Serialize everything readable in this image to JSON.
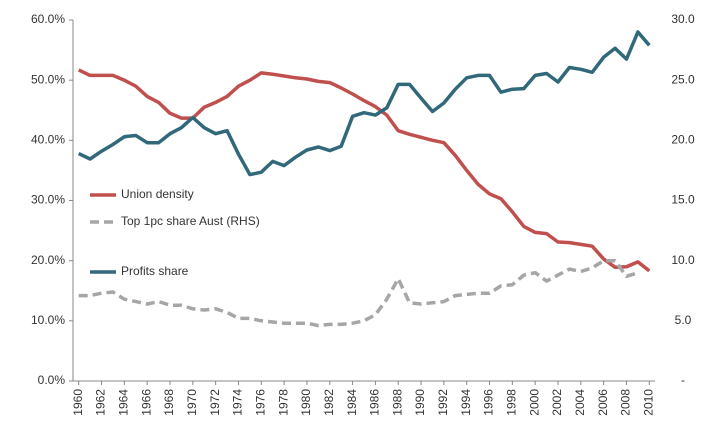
{
  "chart_data": {
    "type": "line",
    "x": [
      1960,
      1961,
      1962,
      1963,
      1964,
      1965,
      1966,
      1967,
      1968,
      1969,
      1970,
      1971,
      1972,
      1973,
      1974,
      1975,
      1976,
      1977,
      1978,
      1979,
      1980,
      1981,
      1982,
      1983,
      1984,
      1985,
      1986,
      1987,
      1988,
      1989,
      1990,
      1991,
      1992,
      1993,
      1994,
      1995,
      1996,
      1997,
      1998,
      1999,
      2000,
      2001,
      2002,
      2003,
      2004,
      2005,
      2006,
      2007,
      2008,
      2009,
      2010
    ],
    "xlim": [
      1959.5,
      2010.5
    ],
    "xticks": [
      1960,
      1962,
      1964,
      1966,
      1968,
      1970,
      1972,
      1974,
      1976,
      1978,
      1980,
      1982,
      1984,
      1986,
      1988,
      1990,
      1992,
      1994,
      1996,
      1998,
      2000,
      2002,
      2004,
      2006,
      2008,
      2010
    ],
    "ylim": [
      0,
      60
    ],
    "yticks": [
      {
        "value": 0,
        "label": "0.0%"
      },
      {
        "value": 10,
        "label": "10.0%"
      },
      {
        "value": 20,
        "label": "20.0%"
      },
      {
        "value": 30,
        "label": "30.0%"
      },
      {
        "value": 40,
        "label": "40.0%"
      },
      {
        "value": 50,
        "label": "50.0%"
      },
      {
        "value": 60,
        "label": "60.0%"
      }
    ],
    "y2lim": [
      0,
      30
    ],
    "y2ticks": [
      {
        "value": 0,
        "label": "-"
      },
      {
        "value": 5,
        "label": "5.0"
      },
      {
        "value": 10,
        "label": "10.0"
      },
      {
        "value": 15,
        "label": "15.0"
      },
      {
        "value": 20,
        "label": "20.0"
      },
      {
        "value": 25,
        "label": "25.0"
      },
      {
        "value": 30,
        "label": "30.0"
      }
    ],
    "series": [
      {
        "name": "Union density",
        "color": "#c0504d",
        "values": [
          51.7,
          50.8,
          50.8,
          50.8,
          50.0,
          49.0,
          47.3,
          46.3,
          44.5,
          43.7,
          43.7,
          45.5,
          46.3,
          47.3,
          49.0,
          50.0,
          51.2,
          51.0,
          50.7,
          50.4,
          50.2,
          49.8,
          49.6,
          48.7,
          47.7,
          46.6,
          45.6,
          44.2,
          41.6,
          41.0,
          40.5,
          40.0,
          39.6,
          37.5,
          35.0,
          32.7,
          31.1,
          30.3,
          28.1,
          25.7,
          24.7,
          24.5,
          23.1,
          23.0,
          22.7,
          22.4,
          20.3,
          18.9,
          19.0,
          19.8,
          18.3
        ]
      },
      {
        "name": "Top 1pc share Aust (RHS)",
        "color": "#a6a6a6",
        "dashed": true,
        "axis": "y2",
        "values": [
          7.1,
          7.1,
          7.3,
          7.4,
          6.8,
          6.6,
          6.4,
          6.6,
          6.3,
          6.3,
          6.0,
          5.9,
          6.0,
          5.7,
          5.2,
          5.2,
          5.0,
          4.9,
          4.8,
          4.8,
          4.8,
          4.6,
          4.7,
          4.7,
          4.8,
          5.0,
          5.5,
          6.8,
          8.5,
          6.5,
          6.4,
          6.5,
          6.6,
          7.1,
          7.2,
          7.3,
          7.3,
          7.9,
          8.0,
          8.8,
          9.0,
          8.3,
          8.8,
          9.3,
          9.1,
          9.4,
          10.0,
          10.0,
          8.7,
          9.0,
          null
        ]
      },
      {
        "name": "Profits share",
        "color": "#31697a",
        "values": [
          37.8,
          36.9,
          38.2,
          39.3,
          40.6,
          40.8,
          39.6,
          39.6,
          41.1,
          42.1,
          43.8,
          42.1,
          41.1,
          41.6,
          37.7,
          34.3,
          34.7,
          36.5,
          35.8,
          37.2,
          38.4,
          38.9,
          38.3,
          39.0,
          44.0,
          44.6,
          44.2,
          45.4,
          49.3,
          49.3,
          47.0,
          44.8,
          46.2,
          48.5,
          50.4,
          50.8,
          50.8,
          48.0,
          48.5,
          48.6,
          50.8,
          51.1,
          49.7,
          52.1,
          51.8,
          51.3,
          53.8,
          55.3,
          53.5,
          58.0,
          55.8
        ]
      }
    ]
  }
}
